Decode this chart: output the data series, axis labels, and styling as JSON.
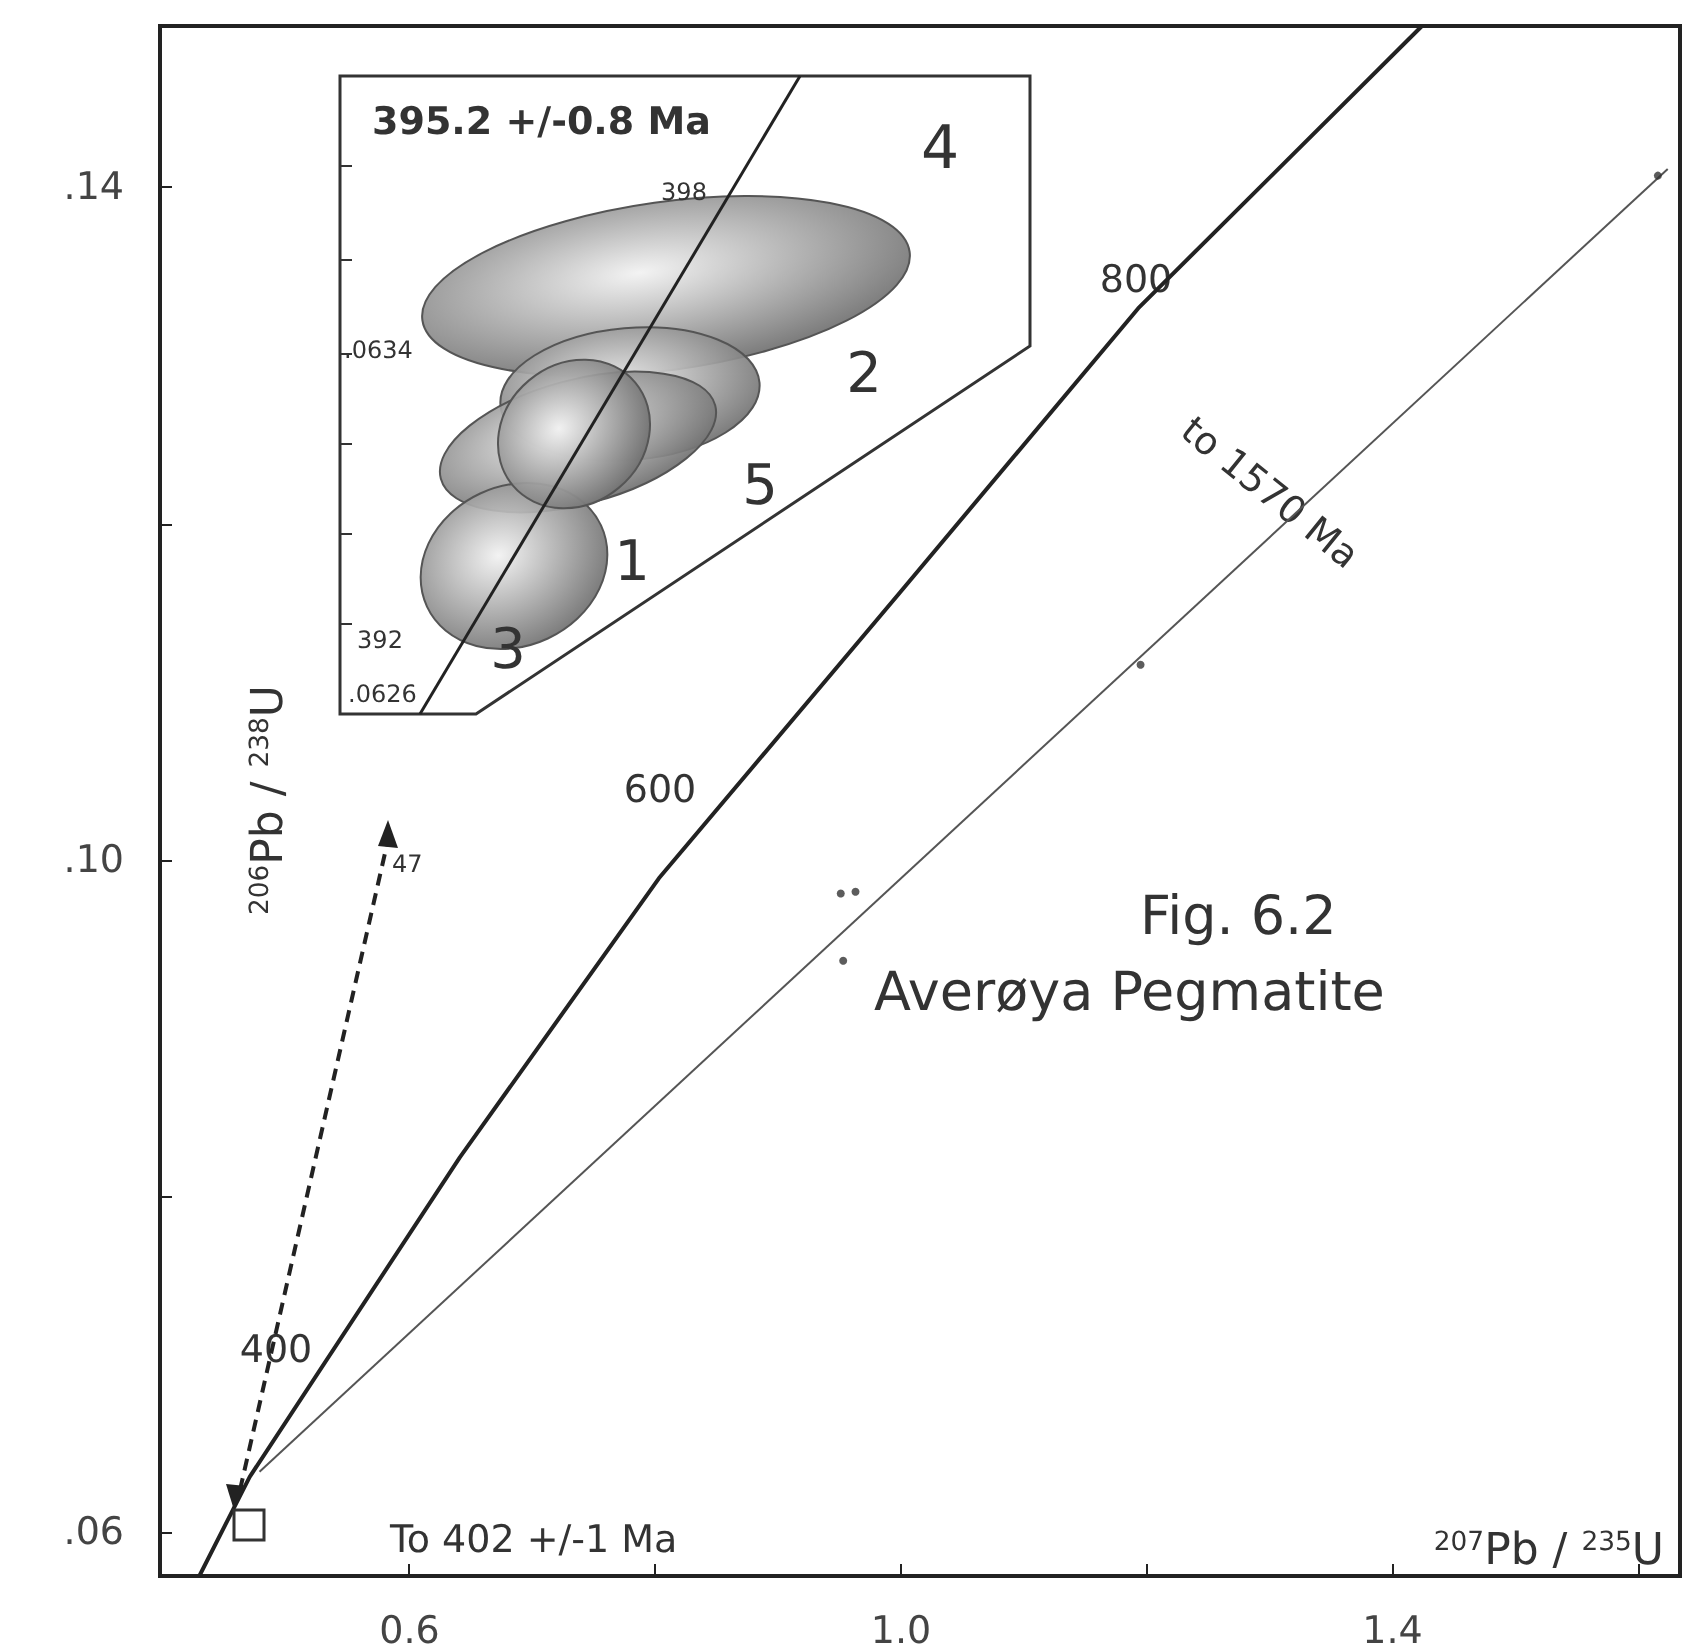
{
  "chart_data": [
    {
      "type": "line",
      "title": "Fig. 6.2",
      "subtitle": "Averøya Pegmatite",
      "xlabel": "$^{207}$Pb / $^{235}$U",
      "ylabel": "$^{206}$Pb / $^{238}$U",
      "xlim": [
        0.397,
        1.634
      ],
      "ylim": [
        0.0574,
        0.1496
      ],
      "xticks": [
        {
          "value": 0.6,
          "label": "0.6"
        },
        {
          "value": 0.8,
          "label": null
        },
        {
          "value": 1,
          "label": "1.0"
        },
        {
          "value": 1.2,
          "label": null
        },
        {
          "value": 1.4,
          "label": "1.4"
        },
        {
          "value": 1.6,
          "label": null
        }
      ],
      "yticks": [
        {
          "value": 0.06,
          "label": ".06"
        },
        {
          "value": 0.08,
          "label": null
        },
        {
          "value": 0.1,
          "label": ".10"
        },
        {
          "value": 0.12,
          "label": null
        },
        {
          "value": 0.14,
          "label": ".14"
        }
      ],
      "series": [
        {
          "type": "line",
          "color": "#222222",
          "x": [
            0.429,
            0.47,
            0.641,
            0.803,
            0.998,
            1.193,
            1.424
          ],
          "values": [
            0.0574,
            0.0633,
            0.0823,
            0.0989,
            0.1158,
            0.1328,
            0.1496
          ]
        },
        {
          "type": "line",
          "color": "#555555",
          "x": [
            0.478,
            1.624
          ],
          "values": [
            0.0636,
            0.1411
          ]
        },
        {
          "type": "scatter",
          "color": "#333333",
          "x": [
            1.616,
            1.195,
            0.951,
            0.963,
            0.953
          ],
          "values": [
            0.1407,
            0.1116,
            0.098,
            0.0981,
            0.094
          ]
        }
      ],
      "annotations": [
        "400",
        "600",
        "800",
        {
          "text": "to 1570 Ma",
          "x": 1.3,
          "y": 0.1192
        },
        "To 402 +/-1 Ma",
        "47"
      ]
    },
    {
      "type": "other",
      "title": "395.2 +/-0.8 Ma",
      "annotations": [
        "398",
        "392",
        ".0634",
        ".0626",
        "4",
        "2",
        "5",
        "3",
        "1"
      ]
    }
  ]
}
